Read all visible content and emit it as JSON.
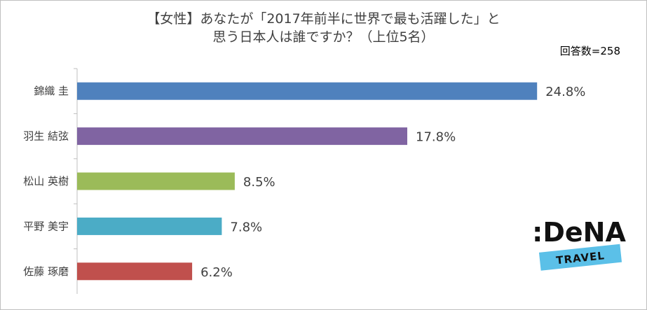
{
  "title_line1": "【女性】あなたが「2017年前半に世界で最も活躍した」と",
  "title_line2": "思う日本人は誰ですか？（上位5名）",
  "respondents": "回答数=258",
  "logo": {
    "brand": ":DeNA",
    "sub": "TRAVEL"
  },
  "chart_data": {
    "type": "bar",
    "orientation": "horizontal",
    "title": "【女性】あなたが「2017年前半に世界で最も活躍した」と思う日本人は誰ですか？（上位5名）",
    "categories": [
      "錦織 圭",
      "羽生 結弦",
      "松山 英樹",
      "平野 美宇",
      "佐藤 琢磨"
    ],
    "values": [
      24.8,
      17.8,
      8.5,
      7.8,
      6.2
    ],
    "value_labels": [
      "24.8%",
      "17.8%",
      "8.5%",
      "7.8%",
      "6.2%"
    ],
    "colors": [
      "#4f81bd",
      "#8064a2",
      "#9bbb59",
      "#4bacc6",
      "#c0504d"
    ],
    "xlim": [
      0,
      26
    ],
    "grid": false,
    "legend": "none"
  }
}
